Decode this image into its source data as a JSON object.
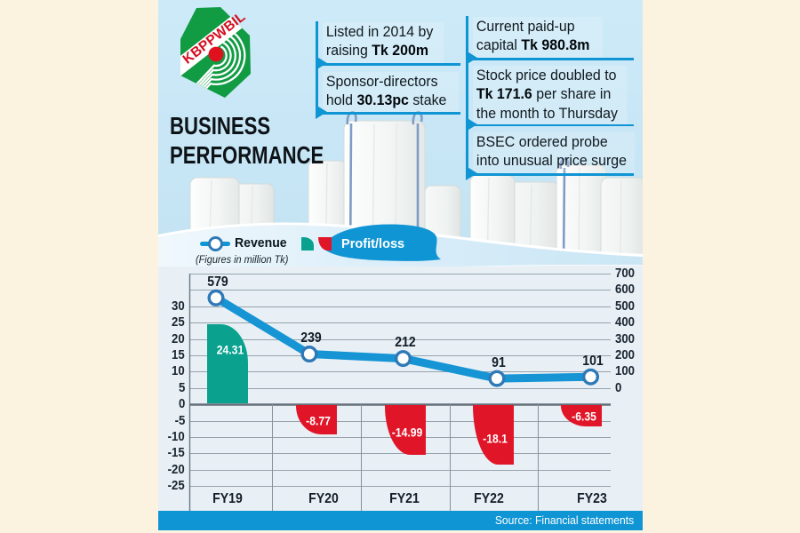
{
  "colors": {
    "accent_blue": "#1095d4",
    "marker_ring_blue": "#2e79b6",
    "teal": "#0aa28f",
    "red": "#e01528",
    "sky": "#c8e5f4",
    "chart_bg": "#e9f1f7",
    "cream_margin": "#fbf2e0",
    "text_dark": "#111a21"
  },
  "logo": {
    "text": "KBPPWBIL"
  },
  "title": {
    "line1": "BUSINESS",
    "line2": "PERFORMANCE"
  },
  "callouts": {
    "left": [
      {
        "segments": [
          {
            "t": "Listed in 2014 by raising ",
            "b": false
          },
          {
            "t": "Tk 200m",
            "b": true
          }
        ]
      },
      {
        "segments": [
          {
            "t": "Sponsor-directors hold ",
            "b": false
          },
          {
            "t": "30.13pc",
            "b": true
          },
          {
            "t": " stake",
            "b": false
          }
        ]
      }
    ],
    "right": [
      {
        "segments": [
          {
            "t": "Current paid-up capital ",
            "b": false
          },
          {
            "t": "Tk 980.8m",
            "b": true
          }
        ]
      },
      {
        "segments": [
          {
            "t": "Stock price doubled to ",
            "b": false
          },
          {
            "t": "Tk 171.6",
            "b": true
          },
          {
            "t": " per share in the month to Thursday",
            "b": false
          }
        ]
      },
      {
        "segments": [
          {
            "t": "BSEC ordered probe into unusual price surge",
            "b": false
          }
        ]
      }
    ]
  },
  "legend": {
    "revenue_label": "Revenue",
    "profit_label": "Profit/loss",
    "note": "(Figures in million Tk)"
  },
  "chart_data": {
    "type": "combo",
    "title": "BUSINESS PERFORMANCE",
    "units": "million Tk",
    "categories": [
      "FY19",
      "FY20",
      "FY21",
      "FY22",
      "FY23"
    ],
    "series": [
      {
        "name": "Revenue",
        "type": "line",
        "axis": "right",
        "values": [
          579,
          239,
          212,
          91,
          101
        ]
      },
      {
        "name": "Profit/loss",
        "type": "shape",
        "axis": "left",
        "values": [
          24.31,
          -8.77,
          -14.99,
          -18.1,
          -6.35
        ]
      }
    ],
    "left_axis": {
      "ticks": [
        30,
        25,
        20,
        15,
        10,
        5,
        0,
        -5,
        -10,
        -15,
        -20,
        -25
      ]
    },
    "right_axis": {
      "ticks": [
        700,
        600,
        500,
        400,
        300,
        200,
        100,
        0
      ]
    },
    "grid": true,
    "legend_position": "top"
  },
  "source": {
    "label": "Source: Financial statements"
  }
}
